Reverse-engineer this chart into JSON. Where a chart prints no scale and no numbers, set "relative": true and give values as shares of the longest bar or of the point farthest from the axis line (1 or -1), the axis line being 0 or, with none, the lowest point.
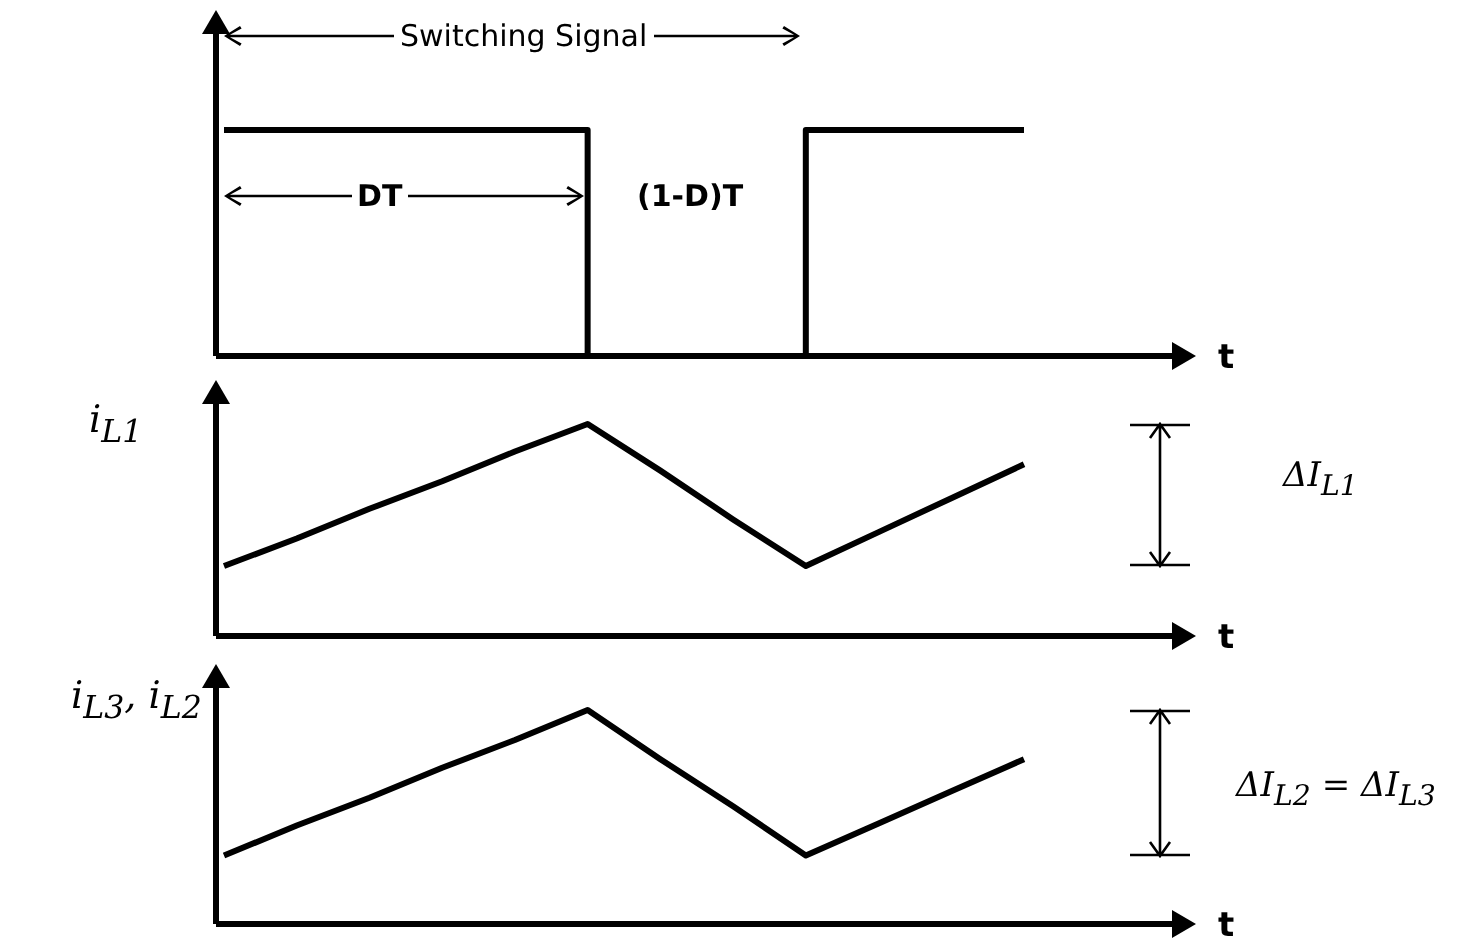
{
  "chart_data": [
    {
      "type": "step",
      "relative": true,
      "xlabel": "t",
      "color": "#000000",
      "categories": [
        null,
        null,
        null,
        null,
        null,
        null,
        null,
        null,
        null,
        null,
        null,
        null
      ],
      "values": [
        1,
        1,
        1,
        1,
        1,
        0,
        0,
        0,
        1,
        1,
        1,
        1
      ],
      "annotations": [
        "Switching Signal",
        "DT",
        "(1-D)T"
      ]
    },
    {
      "type": "line",
      "relative": true,
      "xlabel": "t",
      "ylabel": "i$_{L1}$",
      "color": "#000000",
      "categories": [
        null,
        null,
        null,
        null,
        null,
        null,
        null,
        null,
        null,
        null,
        null,
        null
      ],
      "values": [
        0.33,
        0.46,
        0.6,
        0.73,
        0.87,
        1,
        0.78,
        0.55,
        0.33,
        0.49,
        0.65,
        0.81
      ],
      "annotations": [
        "ΔI$_{L1}$"
      ]
    },
    {
      "type": "line",
      "relative": true,
      "xlabel": "t",
      "ylabel": "i$_{L3}$, i$_{L2}$",
      "color": "#000000",
      "categories": [
        null,
        null,
        null,
        null,
        null,
        null,
        null,
        null,
        null,
        null,
        null,
        null
      ],
      "values": [
        0.32,
        0.46,
        0.59,
        0.73,
        0.86,
        1,
        0.77,
        0.55,
        0.32,
        0.47,
        0.62,
        0.77
      ],
      "annotations": [
        "ΔI$_{L2}$ = ΔI$_{L3}$"
      ]
    }
  ]
}
